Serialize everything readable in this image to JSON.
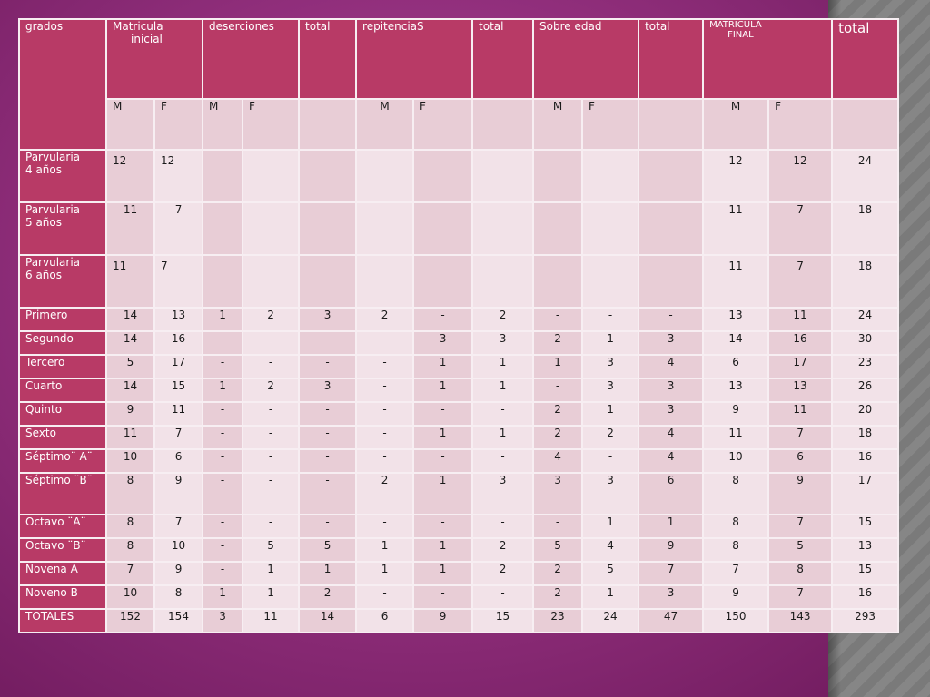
{
  "headers": {
    "grados": "grados",
    "matricula_1": "Matricula",
    "matricula_2": "inicial",
    "deserciones": "deserciones",
    "total1": "total",
    "repitencias": "repitenciaS",
    "total2": "total",
    "sobre_edad": "Sobre edad",
    "total3": "total",
    "matricula_final_1": "MATRICULA",
    "matricula_final_2": "FINAL",
    "total_final": "total"
  },
  "subheaders": [
    "M",
    "F",
    "M",
    "F",
    "",
    "M",
    "F",
    "",
    "M",
    "F",
    "",
    "M",
    "F",
    ""
  ],
  "rows": [
    {
      "label1": "Parvularia",
      "label2": "4 años",
      "cells": [
        "12",
        "12",
        "",
        "",
        "",
        "",
        "",
        "",
        "",
        "",
        "",
        "12",
        "12",
        "24"
      ]
    },
    {
      "label1": "Parvularia",
      "label2": "5  años",
      "cells": [
        "11",
        "7",
        "",
        "",
        "",
        "",
        "",
        "",
        "",
        "",
        "",
        "11",
        "7",
        "18"
      ]
    },
    {
      "label1": "Parvularia",
      "label2": "6  años",
      "cells": [
        "11",
        "7",
        "",
        "",
        "",
        "",
        "",
        "",
        "",
        "",
        "",
        "11",
        "7",
        "18"
      ]
    },
    {
      "label1": "Primero",
      "cells": [
        "14",
        "13",
        "1",
        "2",
        "3",
        "2",
        "-",
        "2",
        "-",
        "-",
        "-",
        "13",
        "11",
        "24"
      ]
    },
    {
      "label1": "Segundo",
      "cells": [
        "14",
        "16",
        "-",
        "-",
        "-",
        "-",
        "3",
        "3",
        "2",
        "1",
        "3",
        "14",
        "16",
        "30"
      ]
    },
    {
      "label1": "Tercero",
      "cells": [
        "5",
        "17",
        "-",
        "-",
        "-",
        "-",
        "1",
        "1",
        "1",
        "3",
        "4",
        "6",
        "17",
        "23"
      ]
    },
    {
      "label1": "Cuarto",
      "cells": [
        "14",
        "15",
        "1",
        "2",
        "3",
        "-",
        "1",
        "1",
        "-",
        "3",
        "3",
        "13",
        "13",
        "26"
      ]
    },
    {
      "label1": "Quinto",
      "cells": [
        "9",
        "11",
        "-",
        "-",
        "-",
        "-",
        "-",
        "-",
        "2",
        "1",
        "3",
        "9",
        "11",
        "20"
      ]
    },
    {
      "label1": "Sexto",
      "cells": [
        "11",
        "7",
        "-",
        "-",
        "-",
        "-",
        "1",
        "1",
        "2",
        "2",
        "4",
        "11",
        "7",
        "18"
      ]
    },
    {
      "label1": "Séptimo¨ A¨",
      "cells": [
        "10",
        "6",
        "-",
        "-",
        "-",
        "-",
        "-",
        "-",
        "4",
        "-",
        "4",
        "10",
        "6",
        "16"
      ]
    },
    {
      "label1": "Séptimo ¨B¨",
      "cells": [
        "8",
        "9",
        "-",
        "-",
        "-",
        "2",
        "1",
        "3",
        "3",
        "3",
        "6",
        "8",
        "9",
        "17"
      ]
    },
    {
      "label1": "Octavo ¨A¨",
      "cells": [
        "8",
        "7",
        "-",
        "-",
        "-",
        "-",
        "-",
        "-",
        "-",
        "1",
        "1",
        "8",
        "7",
        "15"
      ]
    },
    {
      "label1": "Octavo ¨B¨",
      "cells": [
        "8",
        "10",
        "-",
        "5",
        "5",
        "1",
        "1",
        "2",
        "5",
        "4",
        "9",
        "8",
        "5",
        "13"
      ]
    },
    {
      "label1": "Novena A",
      "cells": [
        "7",
        "9",
        "-",
        "1",
        "1",
        "1",
        "1",
        "2",
        "2",
        "5",
        "7",
        "7",
        "8",
        "15"
      ]
    },
    {
      "label1": "Noveno B",
      "cells": [
        "10",
        "8",
        "1",
        "1",
        "2",
        "-",
        "-",
        "-",
        "2",
        "1",
        "3",
        "9",
        "7",
        "16"
      ]
    },
    {
      "label1": "TOTALES",
      "cells": [
        "152",
        "154",
        "3",
        "11",
        "14",
        "6",
        "9",
        "15",
        "23",
        "24",
        "47",
        "150",
        "143",
        "293"
      ]
    }
  ]
}
